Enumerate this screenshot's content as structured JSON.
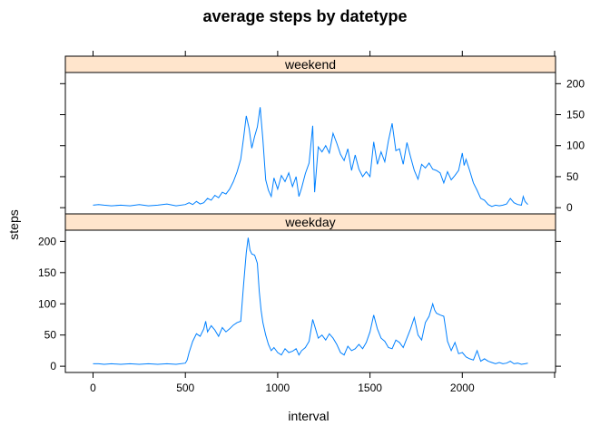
{
  "chart_data": {
    "type": "line",
    "title": "average steps by datetype",
    "xlabel": "interval",
    "ylabel": "steps",
    "xlim": [
      -150,
      2505
    ],
    "ylim": [
      -10,
      218
    ],
    "x_ticks": [
      0,
      500,
      1000,
      1500,
      2000
    ],
    "y_ticks": [
      0,
      50,
      100,
      150,
      200
    ],
    "grid": false,
    "line_color": "#0080ff",
    "strip_color": "#ffe5cc",
    "panels": [
      {
        "name": "weekend",
        "points": [
          [
            0,
            4
          ],
          [
            30,
            5
          ],
          [
            60,
            4
          ],
          [
            100,
            3
          ],
          [
            150,
            4
          ],
          [
            200,
            3
          ],
          [
            250,
            5
          ],
          [
            300,
            3
          ],
          [
            350,
            4
          ],
          [
            400,
            6
          ],
          [
            450,
            3
          ],
          [
            500,
            5
          ],
          [
            520,
            8
          ],
          [
            540,
            5
          ],
          [
            560,
            10
          ],
          [
            580,
            6
          ],
          [
            600,
            8
          ],
          [
            620,
            15
          ],
          [
            640,
            12
          ],
          [
            660,
            20
          ],
          [
            680,
            16
          ],
          [
            700,
            25
          ],
          [
            720,
            22
          ],
          [
            740,
            30
          ],
          [
            760,
            42
          ],
          [
            780,
            58
          ],
          [
            800,
            78
          ],
          [
            815,
            112
          ],
          [
            830,
            148
          ],
          [
            845,
            128
          ],
          [
            860,
            96
          ],
          [
            875,
            115
          ],
          [
            890,
            130
          ],
          [
            905,
            162
          ],
          [
            920,
            110
          ],
          [
            935,
            45
          ],
          [
            950,
            28
          ],
          [
            965,
            18
          ],
          [
            980,
            48
          ],
          [
            1000,
            30
          ],
          [
            1020,
            52
          ],
          [
            1040,
            42
          ],
          [
            1060,
            56
          ],
          [
            1080,
            34
          ],
          [
            1100,
            50
          ],
          [
            1115,
            18
          ],
          [
            1130,
            32
          ],
          [
            1150,
            55
          ],
          [
            1170,
            72
          ],
          [
            1190,
            132
          ],
          [
            1200,
            25
          ],
          [
            1220,
            98
          ],
          [
            1240,
            90
          ],
          [
            1260,
            100
          ],
          [
            1280,
            88
          ],
          [
            1300,
            120
          ],
          [
            1320,
            104
          ],
          [
            1340,
            86
          ],
          [
            1360,
            76
          ],
          [
            1380,
            95
          ],
          [
            1400,
            60
          ],
          [
            1420,
            85
          ],
          [
            1440,
            62
          ],
          [
            1460,
            50
          ],
          [
            1480,
            58
          ],
          [
            1500,
            50
          ],
          [
            1520,
            106
          ],
          [
            1540,
            70
          ],
          [
            1560,
            90
          ],
          [
            1580,
            74
          ],
          [
            1600,
            108
          ],
          [
            1620,
            136
          ],
          [
            1640,
            92
          ],
          [
            1660,
            95
          ],
          [
            1680,
            70
          ],
          [
            1700,
            105
          ],
          [
            1720,
            82
          ],
          [
            1740,
            60
          ],
          [
            1760,
            46
          ],
          [
            1780,
            70
          ],
          [
            1800,
            64
          ],
          [
            1820,
            72
          ],
          [
            1840,
            62
          ],
          [
            1860,
            60
          ],
          [
            1880,
            56
          ],
          [
            1900,
            40
          ],
          [
            1920,
            58
          ],
          [
            1940,
            45
          ],
          [
            1960,
            52
          ],
          [
            1980,
            60
          ],
          [
            2000,
            88
          ],
          [
            2010,
            68
          ],
          [
            2020,
            78
          ],
          [
            2040,
            60
          ],
          [
            2060,
            40
          ],
          [
            2080,
            28
          ],
          [
            2100,
            15
          ],
          [
            2120,
            12
          ],
          [
            2140,
            5
          ],
          [
            2160,
            2
          ],
          [
            2180,
            4
          ],
          [
            2200,
            3
          ],
          [
            2220,
            4
          ],
          [
            2240,
            6
          ],
          [
            2260,
            15
          ],
          [
            2280,
            8
          ],
          [
            2300,
            5
          ],
          [
            2320,
            4
          ],
          [
            2330,
            18
          ],
          [
            2340,
            10
          ],
          [
            2355,
            5
          ]
        ]
      },
      {
        "name": "weekday",
        "points": [
          [
            0,
            4
          ],
          [
            30,
            4
          ],
          [
            60,
            3
          ],
          [
            100,
            4
          ],
          [
            150,
            3
          ],
          [
            200,
            4
          ],
          [
            250,
            3
          ],
          [
            300,
            4
          ],
          [
            350,
            3
          ],
          [
            400,
            4
          ],
          [
            450,
            3
          ],
          [
            500,
            5
          ],
          [
            510,
            10
          ],
          [
            520,
            22
          ],
          [
            540,
            40
          ],
          [
            560,
            52
          ],
          [
            580,
            48
          ],
          [
            600,
            60
          ],
          [
            610,
            72
          ],
          [
            620,
            55
          ],
          [
            640,
            65
          ],
          [
            660,
            58
          ],
          [
            680,
            48
          ],
          [
            700,
            62
          ],
          [
            720,
            55
          ],
          [
            740,
            60
          ],
          [
            760,
            66
          ],
          [
            780,
            70
          ],
          [
            800,
            72
          ],
          [
            815,
            130
          ],
          [
            830,
            182
          ],
          [
            840,
            206
          ],
          [
            850,
            186
          ],
          [
            860,
            180
          ],
          [
            875,
            178
          ],
          [
            890,
            165
          ],
          [
            900,
            120
          ],
          [
            910,
            90
          ],
          [
            920,
            70
          ],
          [
            935,
            50
          ],
          [
            950,
            35
          ],
          [
            965,
            25
          ],
          [
            980,
            30
          ],
          [
            1000,
            22
          ],
          [
            1020,
            18
          ],
          [
            1040,
            28
          ],
          [
            1060,
            22
          ],
          [
            1080,
            24
          ],
          [
            1100,
            28
          ],
          [
            1115,
            18
          ],
          [
            1130,
            25
          ],
          [
            1150,
            30
          ],
          [
            1170,
            40
          ],
          [
            1190,
            75
          ],
          [
            1205,
            60
          ],
          [
            1220,
            45
          ],
          [
            1240,
            50
          ],
          [
            1260,
            42
          ],
          [
            1280,
            52
          ],
          [
            1300,
            45
          ],
          [
            1320,
            35
          ],
          [
            1340,
            22
          ],
          [
            1360,
            18
          ],
          [
            1380,
            32
          ],
          [
            1400,
            25
          ],
          [
            1420,
            28
          ],
          [
            1440,
            35
          ],
          [
            1460,
            28
          ],
          [
            1480,
            38
          ],
          [
            1500,
            55
          ],
          [
            1520,
            82
          ],
          [
            1540,
            60
          ],
          [
            1560,
            45
          ],
          [
            1580,
            40
          ],
          [
            1600,
            30
          ],
          [
            1620,
            28
          ],
          [
            1640,
            42
          ],
          [
            1660,
            38
          ],
          [
            1680,
            30
          ],
          [
            1700,
            45
          ],
          [
            1720,
            60
          ],
          [
            1740,
            78
          ],
          [
            1760,
            50
          ],
          [
            1780,
            42
          ],
          [
            1800,
            70
          ],
          [
            1820,
            80
          ],
          [
            1840,
            100
          ],
          [
            1850,
            90
          ],
          [
            1860,
            85
          ],
          [
            1880,
            82
          ],
          [
            1900,
            80
          ],
          [
            1910,
            60
          ],
          [
            1920,
            40
          ],
          [
            1940,
            25
          ],
          [
            1960,
            38
          ],
          [
            1980,
            20
          ],
          [
            2000,
            22
          ],
          [
            2020,
            15
          ],
          [
            2040,
            12
          ],
          [
            2060,
            10
          ],
          [
            2080,
            25
          ],
          [
            2100,
            8
          ],
          [
            2120,
            12
          ],
          [
            2140,
            8
          ],
          [
            2160,
            6
          ],
          [
            2180,
            4
          ],
          [
            2200,
            6
          ],
          [
            2220,
            4
          ],
          [
            2240,
            5
          ],
          [
            2260,
            8
          ],
          [
            2280,
            4
          ],
          [
            2300,
            5
          ],
          [
            2320,
            3
          ],
          [
            2340,
            4
          ],
          [
            2355,
            5
          ]
        ]
      }
    ]
  }
}
